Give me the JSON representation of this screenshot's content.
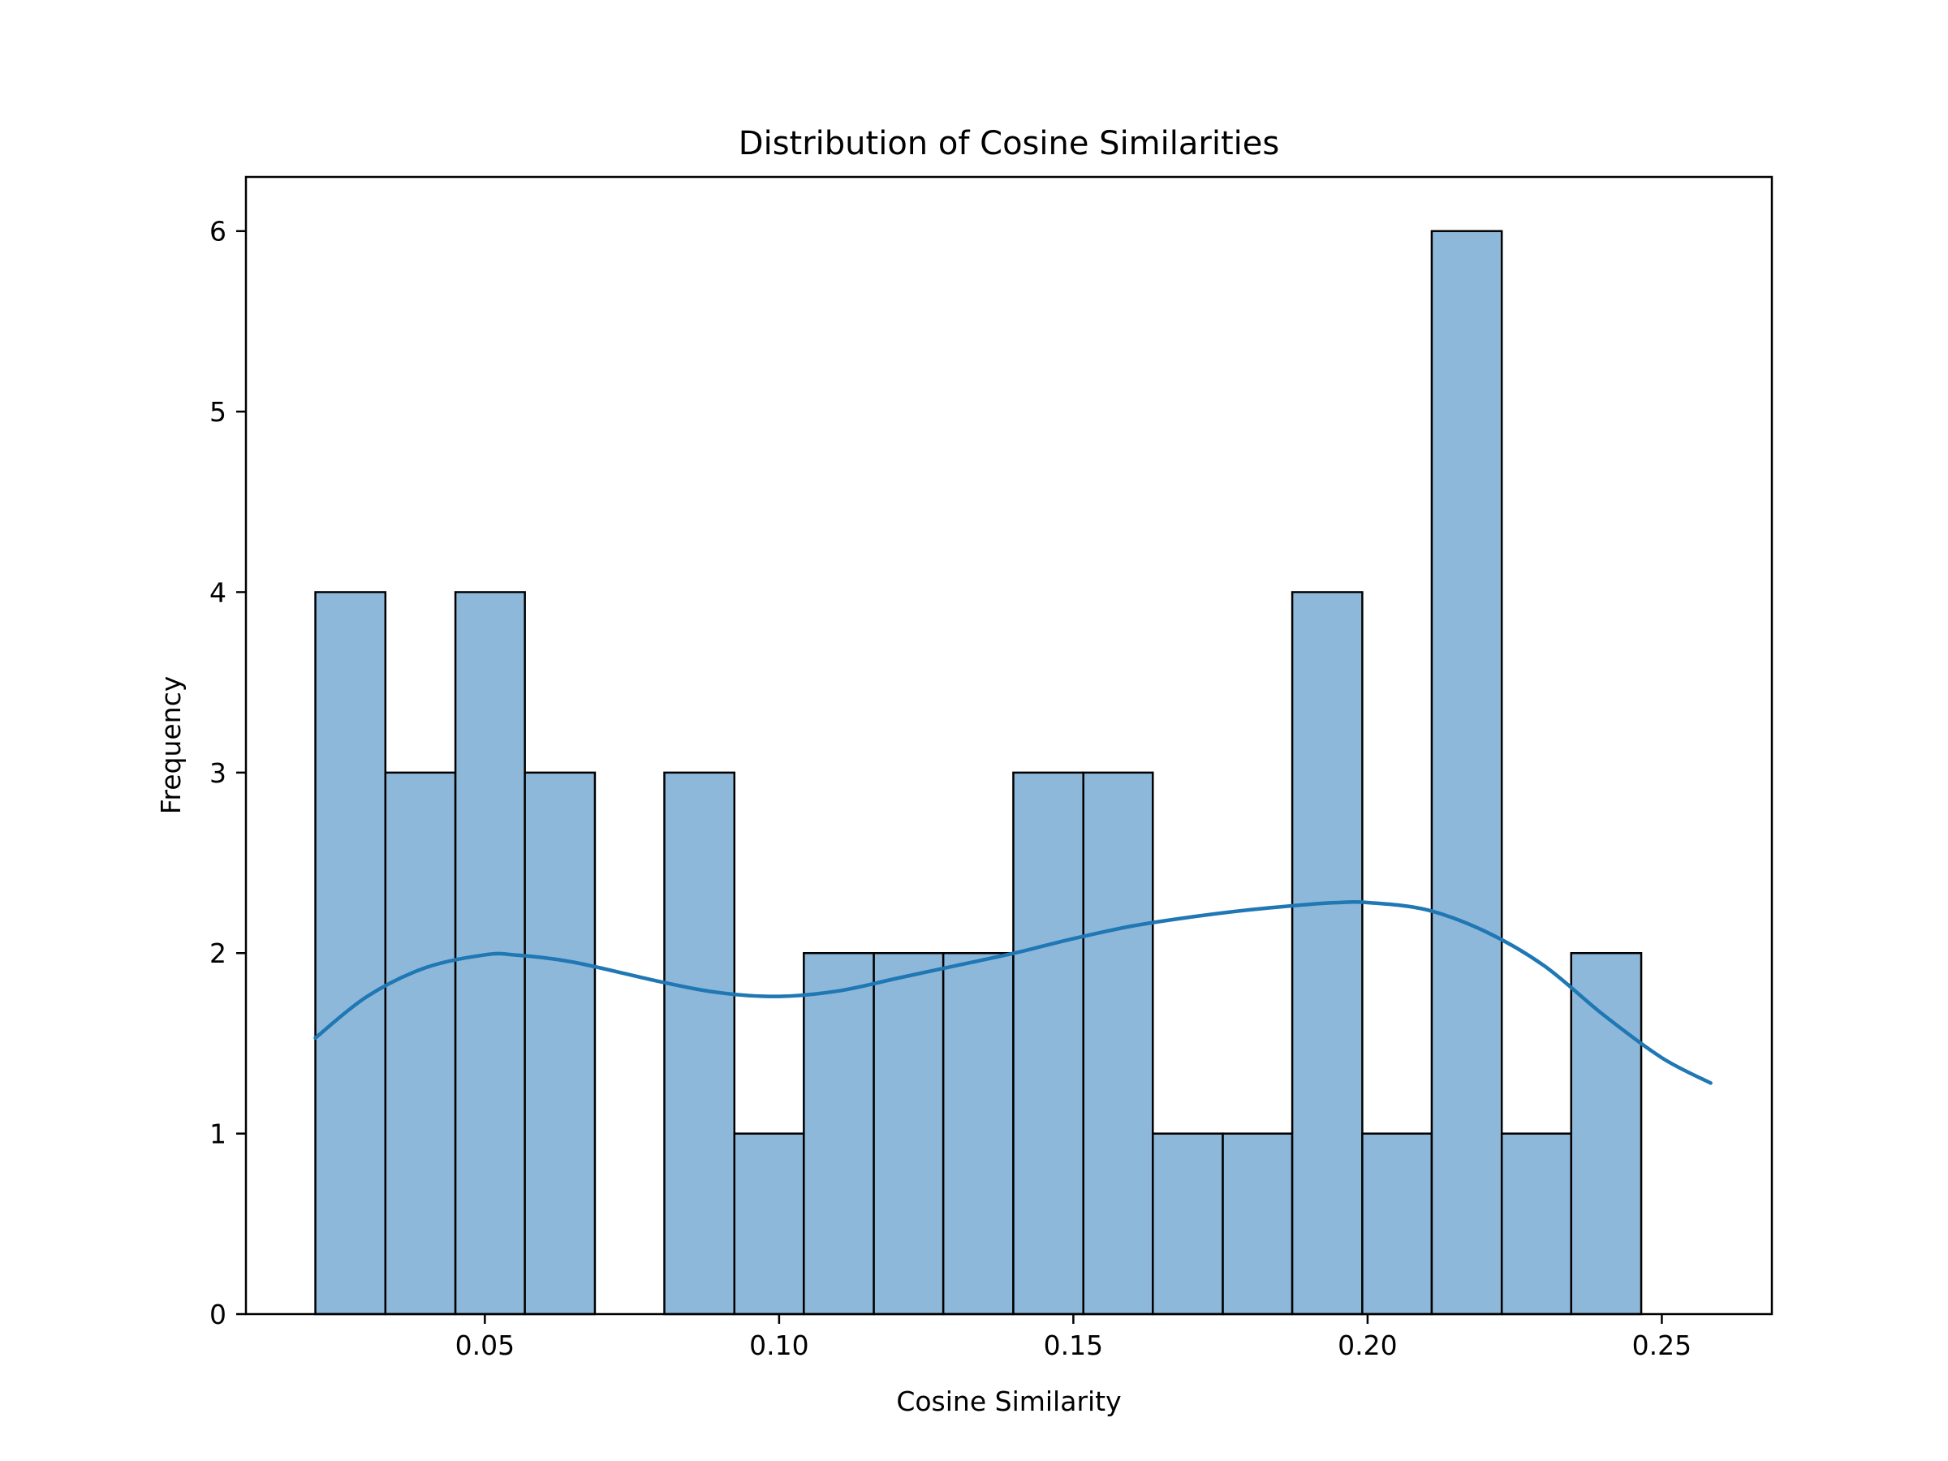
{
  "chart_data": {
    "type": "bar",
    "title": "Distribution of Cosine Similarities",
    "xlabel": "Cosine Similarity",
    "ylabel": "Frequency",
    "grid": false,
    "xlim": [
      0.0094,
      0.2687
    ],
    "ylim": [
      0,
      6.3
    ],
    "x_ticks": [
      {
        "value": 0.05,
        "label": "0.05"
      },
      {
        "value": 0.1,
        "label": "0.10"
      },
      {
        "value": 0.15,
        "label": "0.15"
      },
      {
        "value": 0.2,
        "label": "0.20"
      },
      {
        "value": 0.25,
        "label": "0.25"
      }
    ],
    "y_ticks": [
      {
        "value": 0,
        "label": "0"
      },
      {
        "value": 1,
        "label": "1"
      },
      {
        "value": 2,
        "label": "2"
      },
      {
        "value": 3,
        "label": "3"
      },
      {
        "value": 4,
        "label": "4"
      },
      {
        "value": 5,
        "label": "5"
      },
      {
        "value": 6,
        "label": "6"
      }
    ],
    "bin_edges": [
      0.0212,
      0.0331,
      0.045,
      0.0568,
      0.0687,
      0.0805,
      0.0924,
      0.1042,
      0.1161,
      0.1279,
      0.1398,
      0.1517,
      0.1635,
      0.1754,
      0.1872,
      0.1991,
      0.2109,
      0.2228,
      0.2346,
      0.2465,
      0.2583
    ],
    "values": [
      4,
      3,
      4,
      3,
      0,
      3,
      1,
      2,
      2,
      2,
      3,
      3,
      1,
      1,
      4,
      1,
      6,
      1,
      2,
      0
    ],
    "kde": {
      "x": [
        0.0212,
        0.03,
        0.04,
        0.05,
        0.055,
        0.065,
        0.08,
        0.09,
        0.1,
        0.11,
        0.12,
        0.13,
        0.14,
        0.15,
        0.16,
        0.17,
        0.18,
        0.19,
        0.195,
        0.2,
        0.21,
        0.22,
        0.23,
        0.24,
        0.25,
        0.2583
      ],
      "y": [
        1.53,
        1.76,
        1.92,
        1.99,
        1.99,
        1.95,
        1.84,
        1.78,
        1.76,
        1.79,
        1.86,
        1.93,
        2.0,
        2.08,
        2.15,
        2.2,
        2.24,
        2.27,
        2.28,
        2.28,
        2.24,
        2.12,
        1.93,
        1.66,
        1.42,
        1.28
      ]
    },
    "colors": {
      "bar_fill": "#8eb8da",
      "bar_edge": "#000000",
      "kde_line": "#1f77b4"
    }
  }
}
